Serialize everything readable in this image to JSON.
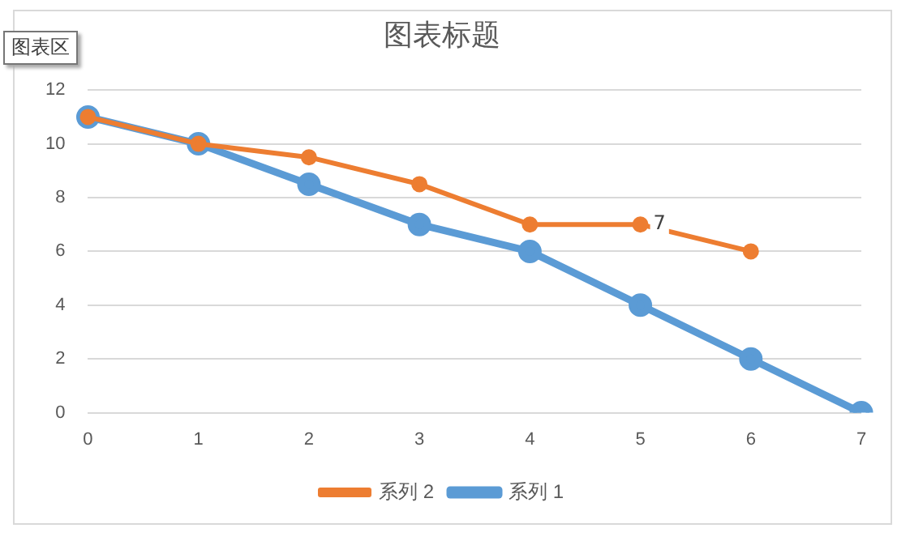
{
  "chart_data": {
    "type": "line",
    "title": "图表标题",
    "annotations": [
      "图表区"
    ],
    "categories": [
      "0",
      "1",
      "2",
      "3",
      "4",
      "5",
      "6",
      "7"
    ],
    "series": [
      {
        "name": "系列 1",
        "color": "#5b9bd5",
        "values": [
          11,
          10,
          8.5,
          7,
          6,
          4,
          2,
          0
        ]
      },
      {
        "name": "系列 2",
        "color": "#ed7d31",
        "values": [
          11,
          10,
          9.5,
          8.5,
          7,
          7,
          6,
          null
        ],
        "value_labels": [
          null,
          null,
          null,
          null,
          null,
          "7",
          null,
          null
        ]
      }
    ],
    "ylim": [
      0,
      12
    ],
    "yticks": [
      0,
      2,
      4,
      6,
      8,
      10,
      12
    ],
    "grid": "y",
    "legend": "bottom",
    "marker": "circle"
  }
}
